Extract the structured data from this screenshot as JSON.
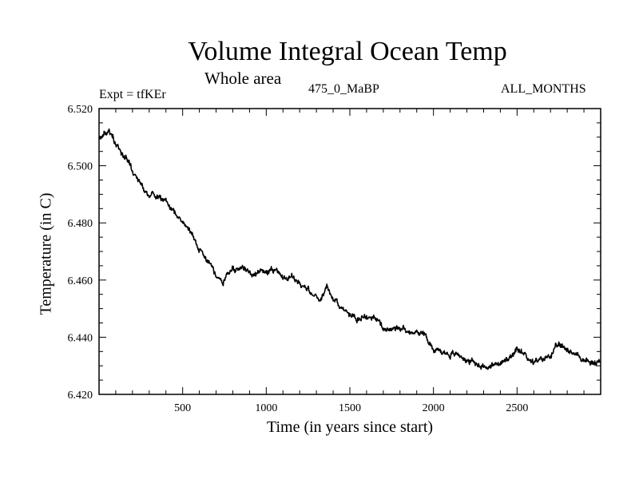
{
  "header": {
    "title": "Volume Integral Ocean Temp",
    "subtitle": "Whole area",
    "experiment": "Expt = tfKEr",
    "epoch": "475_0_MaBP",
    "months": "ALL_MONTHS"
  },
  "chart_data": {
    "type": "line",
    "title": "Volume Integral Ocean Temp",
    "subtitle": "Whole area",
    "xlabel": "Time (in years since start)",
    "ylabel": "Temperature (in C)",
    "xlim": [
      0,
      3000
    ],
    "ylim": [
      6.42,
      6.52
    ],
    "xticks": [
      500,
      1000,
      1500,
      2000,
      2500
    ],
    "yticks": [
      "6.420",
      "6.440",
      "6.460",
      "6.480",
      "6.500",
      "6.520"
    ],
    "grid": false,
    "legend": "none",
    "line_color": "#000000",
    "series": [
      {
        "x": [
          0,
          30,
          60,
          90,
          120,
          150,
          180,
          210,
          240,
          270,
          300,
          330,
          360,
          400,
          450,
          500,
          550,
          600,
          650,
          700,
          740,
          760,
          800,
          850,
          900,
          950,
          1000,
          1050,
          1100,
          1150,
          1200,
          1250,
          1300,
          1330,
          1360,
          1400,
          1450,
          1500,
          1550,
          1600,
          1650,
          1700,
          1750,
          1800,
          1850,
          1900,
          1950,
          2000,
          2050,
          2100,
          2150,
          2200,
          2250,
          2300,
          2350,
          2400,
          2450,
          2500,
          2550,
          2600,
          2650,
          2700,
          2750,
          2800,
          2850,
          2900,
          2950,
          3000
        ],
        "y": [
          6.509,
          6.511,
          6.512,
          6.509,
          6.506,
          6.503,
          6.501,
          6.497,
          6.494,
          6.492,
          6.49,
          6.49,
          6.488,
          6.487,
          6.484,
          6.48,
          6.476,
          6.471,
          6.466,
          6.461,
          6.459,
          6.462,
          6.464,
          6.464,
          6.463,
          6.463,
          6.463,
          6.463,
          6.462,
          6.462,
          6.459,
          6.457,
          6.454,
          6.453,
          6.458,
          6.454,
          6.45,
          6.448,
          6.447,
          6.447,
          6.447,
          6.443,
          6.443,
          6.443,
          6.442,
          6.442,
          6.441,
          6.436,
          6.435,
          6.434,
          6.434,
          6.432,
          6.431,
          6.43,
          6.43,
          6.431,
          6.432,
          6.435,
          6.434,
          6.431,
          6.432,
          6.434,
          6.437,
          6.436,
          6.434,
          6.432,
          6.431,
          6.431
        ]
      }
    ]
  }
}
